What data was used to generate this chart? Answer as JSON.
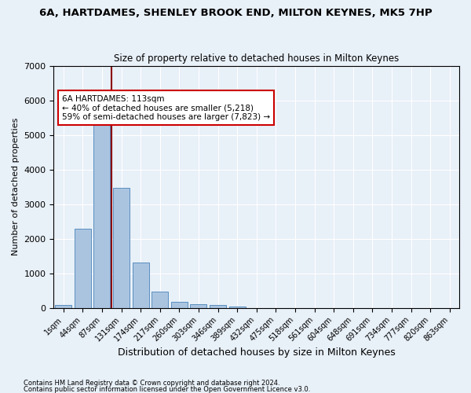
{
  "title": "6A, HARTDAMES, SHENLEY BROOK END, MILTON KEYNES, MK5 7HP",
  "subtitle": "Size of property relative to detached houses in Milton Keynes",
  "xlabel": "Distribution of detached houses by size in Milton Keynes",
  "ylabel": "Number of detached properties",
  "footnote1": "Contains HM Land Registry data © Crown copyright and database right 2024.",
  "footnote2": "Contains public sector information licensed under the Open Government Licence v3.0.",
  "bar_color": "#aac4e0",
  "bar_edge_color": "#5a8fc0",
  "background_color": "#e8f0f8",
  "grid_color": "#ffffff",
  "vline_color": "#8b0000",
  "vline_position": 3,
  "annotation_text": "6A HARTDAMES: 113sqm\n← 40% of detached houses are smaller (5,218)\n59% of semi-detached houses are larger (7,823) →",
  "annotation_box_color": "#ffffff",
  "annotation_box_edge": "#cc0000",
  "categories": [
    "1sqm",
    "44sqm",
    "87sqm",
    "131sqm",
    "174sqm",
    "217sqm",
    "260sqm",
    "303sqm",
    "346sqm",
    "389sqm",
    "432sqm",
    "475sqm",
    "518sqm",
    "561sqm",
    "604sqm",
    "648sqm",
    "691sqm",
    "734sqm",
    "777sqm",
    "820sqm",
    "863sqm"
  ],
  "values": [
    80,
    2280,
    5480,
    3460,
    1320,
    460,
    165,
    100,
    80,
    40,
    0,
    0,
    0,
    0,
    0,
    0,
    0,
    0,
    0,
    0,
    0
  ],
  "ylim": [
    0,
    7000
  ],
  "yticks": [
    0,
    1000,
    2000,
    3000,
    4000,
    5000,
    6000,
    7000
  ]
}
